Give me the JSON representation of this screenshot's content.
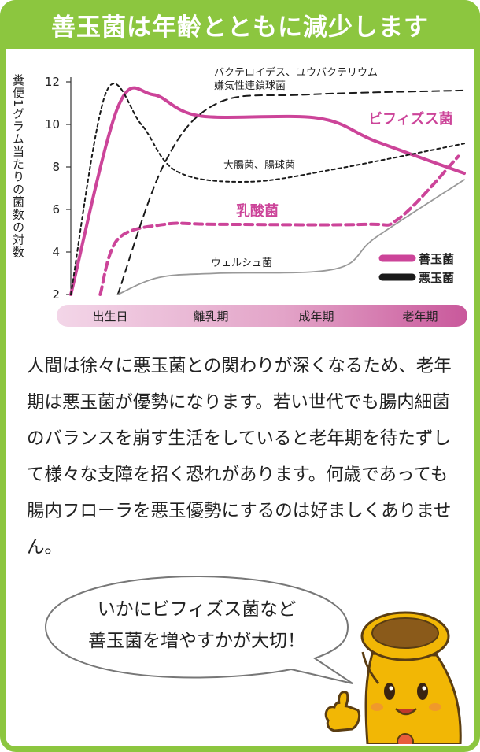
{
  "title": "善玉菌は年齢とともに減少します",
  "chart_data": {
    "type": "line",
    "ylabel": "糞便1グラム当たりの菌数の対数",
    "ylim": [
      2,
      12
    ],
    "yticks": [
      2,
      4,
      6,
      8,
      10,
      12
    ],
    "x_stages": [
      "出生日",
      "離乳期",
      "成年期",
      "老年期"
    ],
    "legend": [
      {
        "label": "善玉菌",
        "color": "#cc4499",
        "style": "solid"
      },
      {
        "label": "悪玉菌",
        "color": "#1a1a1a",
        "style": "dashed"
      }
    ],
    "series": [
      {
        "name": "ビフィズス菌",
        "group": "善玉菌",
        "style": "solid",
        "color": "#cc4499",
        "points": [
          [
            0,
            2
          ],
          [
            0.8,
            10.8
          ],
          [
            1.4,
            11.4
          ],
          [
            2.2,
            10.4
          ],
          [
            4.2,
            10.3
          ],
          [
            5.2,
            9.2
          ],
          [
            6.7,
            7.7
          ]
        ]
      },
      {
        "name": "乳酸菌",
        "group": "善玉菌",
        "style": "dashed",
        "color": "#cc4499",
        "points": [
          [
            0.5,
            2
          ],
          [
            0.8,
            4.6
          ],
          [
            1.6,
            5.3
          ],
          [
            2.5,
            5.3
          ],
          [
            5.0,
            5.3
          ],
          [
            5.6,
            5.6
          ],
          [
            6.6,
            8.5
          ]
        ]
      },
      {
        "name": "バクテロイデス、ユウバクテリウム 嫌気性連鎖球菌",
        "group": "悪玉菌",
        "style": "dashed",
        "color": "#1a1a1a",
        "points": [
          [
            0.8,
            2
          ],
          [
            1.6,
            8.2
          ],
          [
            2.5,
            11.0
          ],
          [
            4.0,
            11.4
          ],
          [
            6.7,
            11.6
          ]
        ]
      },
      {
        "name": "大腸菌、腸球菌",
        "group": "悪玉菌",
        "style": "dashed",
        "color": "#1a1a1a",
        "points": [
          [
            0,
            2
          ],
          [
            0.6,
            11.5
          ],
          [
            1.2,
            10.0
          ],
          [
            1.8,
            7.8
          ],
          [
            3.0,
            7.3
          ],
          [
            4.5,
            7.9
          ],
          [
            6.7,
            9.1
          ]
        ]
      },
      {
        "name": "ウェルシュ菌",
        "group": "悪玉菌",
        "style": "solid",
        "color": "#999999",
        "points": [
          [
            0.8,
            2
          ],
          [
            1.5,
            2.8
          ],
          [
            2.5,
            3.0
          ],
          [
            4.5,
            3.2
          ],
          [
            5.2,
            4.7
          ],
          [
            6.7,
            7.4
          ]
        ]
      }
    ]
  },
  "body_text": "人間は徐々に悪玉菌との関わりが深くなるため、老年期は悪玉菌が優勢になります。若い世代でも腸内細菌のバランスを崩す生活をしていると老年期を待たずして様々な支障を招く恐れがあります。何歳であっても腸内フローラを悪玉優勢にするのは好ましくありません。",
  "bubble": {
    "line1": "いかにビフィズス菌など",
    "line2": "善玉菌を増やすかが大切！"
  },
  "colors": {
    "frame": "#8cc63f",
    "good_bacteria": "#cc4499",
    "bad_bacteria": "#1a1a1a",
    "welch": "#999999"
  }
}
